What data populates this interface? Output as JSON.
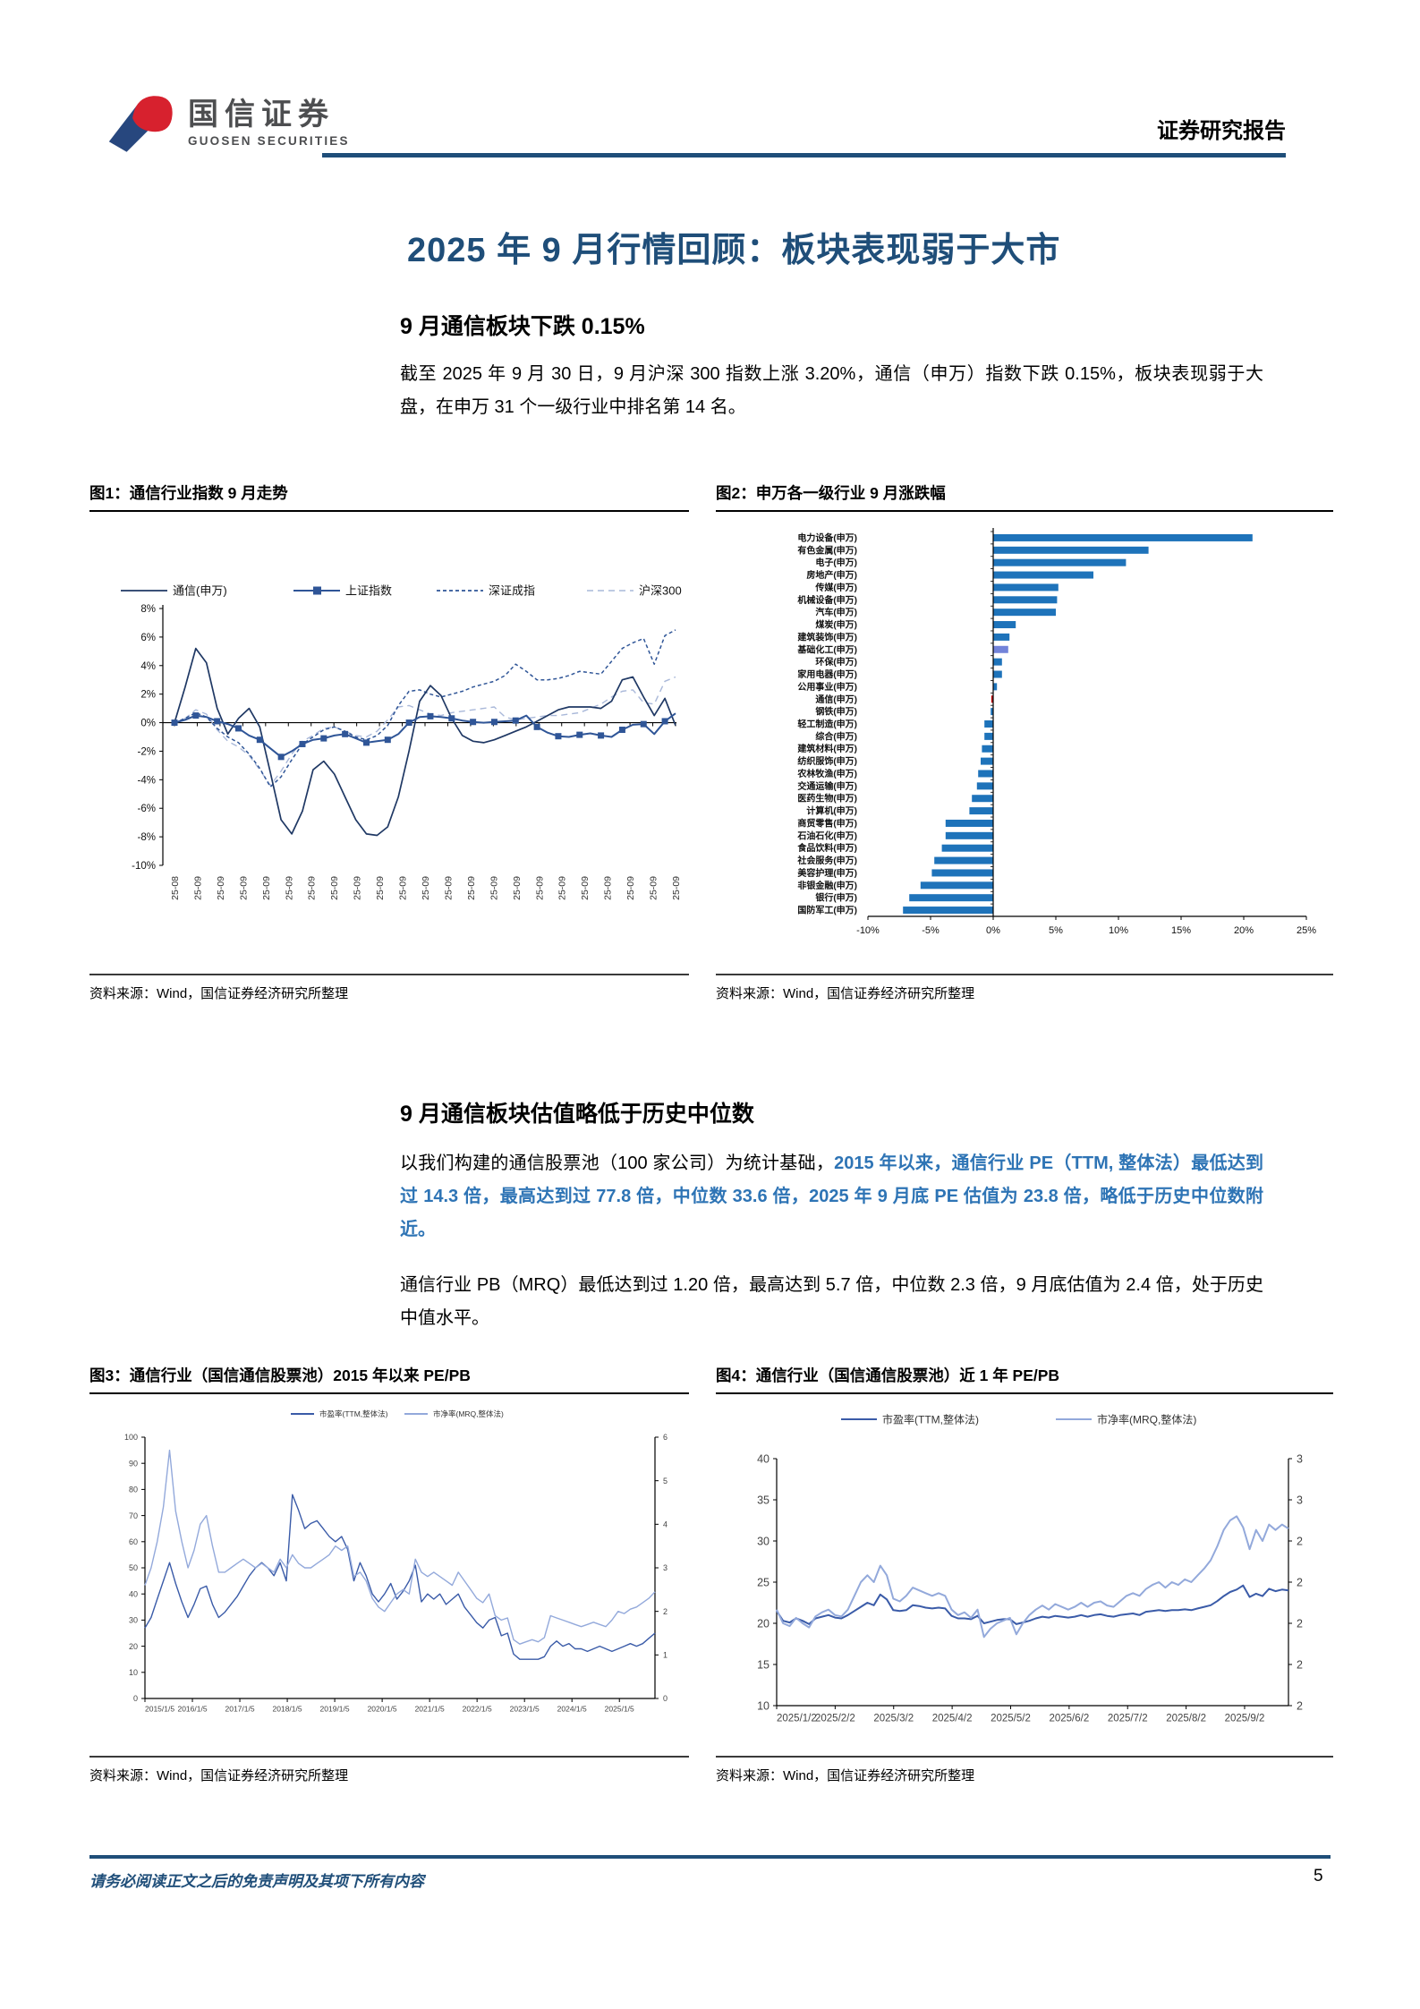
{
  "header": {
    "logo_cn": "国信证券",
    "logo_en": "GUOSEN SECURITIES",
    "right_label": "证券研究报告",
    "rule_color": "#1F4E79",
    "logo_blue": "#27477E",
    "logo_red": "#D7212E"
  },
  "title": "2025 年 9 月行情回顾：板块表现弱于大市",
  "section1": {
    "heading": "9 月通信板块下跌 0.15%",
    "paragraph": "截至 2025 年 9 月 30 日，9 月沪深 300 指数上涨 3.20%，通信（申万）指数下跌 0.15%，板块表现弱于大盘，在申万 31 个一级行业中排名第 14 名。"
  },
  "section2": {
    "heading": "9 月通信板块估值略低于历史中位数",
    "para1_black": "以我们构建的通信股票池（100 家公司）为统计基础，",
    "para1_blue": "2015 年以来，通信行业 PE（TTM, 整体法）最低达到过 14.3 倍，最高达到过 77.8 倍，中位数 33.6 倍，2025 年 9 月底 PE 估值为 23.8 倍，略低于历史中位数附近。",
    "para2": "通信行业 PB（MRQ）最低达到过 1.20 倍，最高达到 5.7 倍，中位数 2.3 倍，9 月底估值为 2.4 倍，处于历史中值水平。"
  },
  "footer": {
    "disclaimer": "请务必阅读正文之后的免责声明及其项下所有内容",
    "page_number": "5"
  },
  "chart_data": [
    {
      "id": "fig1",
      "type": "line",
      "title": "图1：通信行业指数 9 月走势",
      "source": "资料来源：Wind，国信证券经济研究所整理",
      "ylim": [
        -10,
        8
      ],
      "ytick_labels": [
        "8%",
        "6%",
        "4%",
        "2%",
        "0%",
        "-2%",
        "-4%",
        "-6%",
        "-8%",
        "-10%"
      ],
      "x_labels": [
        "25-08",
        "25-09",
        "25-09",
        "25-09",
        "25-09",
        "25-09",
        "25-09",
        "25-09",
        "25-09",
        "25-09",
        "25-09",
        "25-09",
        "25-09",
        "25-09",
        "25-09",
        "25-09",
        "25-09",
        "25-09",
        "25-09",
        "25-09",
        "25-09",
        "25-09",
        "25-09"
      ],
      "series": [
        {
          "name": "沪深300",
          "color": "#A9B8D9",
          "style": "dash2",
          "width": 1.4,
          "values": [
            0,
            0.3,
            0.9,
            0.6,
            -0.5,
            -1.3,
            -1.7,
            -2.3,
            -3.3,
            -4.4,
            -3.4,
            -2.2,
            -1.3,
            -0.9,
            -0.4,
            -0.3,
            -0.6,
            -0.9,
            -1.0,
            -0.6,
            0.2,
            1.1,
            1.2,
            0.9,
            0.6,
            0.5,
            0.7,
            0.8,
            0.9,
            1.0,
            1.1,
            0.4,
            0.2,
            0.3,
            0.4,
            0.5,
            0.5,
            0.6,
            0.7,
            1.0,
            1.3,
            1.8,
            2.2,
            2.3,
            1.4,
            1.3,
            2.9,
            3.2
          ]
        },
        {
          "name": "深证成指",
          "color": "#2F5597",
          "style": "dash",
          "width": 1.5,
          "values": [
            0,
            0.3,
            0.7,
            0.4,
            -0.4,
            -1.0,
            -1.4,
            -2.2,
            -3.2,
            -4.5,
            -3.8,
            -2.6,
            -1.5,
            -1.0,
            -0.5,
            -0.3,
            -0.6,
            -1.0,
            -1.2,
            -0.9,
            -0.2,
            1.2,
            2.2,
            2.3,
            2.0,
            1.8,
            2.0,
            2.2,
            2.5,
            2.7,
            2.9,
            3.3,
            4.1,
            3.6,
            3.0,
            3.0,
            3.1,
            3.3,
            3.6,
            3.5,
            3.4,
            4.3,
            5.2,
            5.6,
            5.9,
            4.1,
            6.1,
            6.5
          ]
        },
        {
          "name": "通信(申万)",
          "color": "#1F3864",
          "style": "solid",
          "width": 1.7,
          "values": [
            0,
            2.5,
            5.2,
            4.2,
            1.0,
            -0.8,
            0.3,
            1.0,
            -0.3,
            -3.5,
            -6.8,
            -7.8,
            -6.2,
            -3.3,
            -2.7,
            -3.6,
            -5.2,
            -6.8,
            -7.8,
            -7.9,
            -7.3,
            -5.2,
            -2.0,
            1.5,
            2.6,
            1.9,
            0.3,
            -0.9,
            -1.3,
            -1.4,
            -1.2,
            -0.9,
            -0.6,
            -0.3,
            0.1,
            0.5,
            0.9,
            1.1,
            1.1,
            1.1,
            1.0,
            1.5,
            3.0,
            3.2,
            1.8,
            0.5,
            1.7,
            -0.2
          ]
        },
        {
          "name": "上证指数",
          "color": "#2F5597",
          "style": "marker",
          "width": 2,
          "values": [
            0,
            0.2,
            0.5,
            0.4,
            0.1,
            -0.1,
            -0.4,
            -0.9,
            -1.2,
            -1.8,
            -2.4,
            -2.0,
            -1.5,
            -1.2,
            -1.1,
            -0.9,
            -0.8,
            -1.1,
            -1.4,
            -1.3,
            -1.2,
            -0.8,
            0.0,
            0.4,
            0.45,
            0.4,
            0.3,
            0.15,
            0.05,
            0.0,
            0.05,
            0.1,
            0.15,
            0.5,
            -0.3,
            -0.7,
            -0.95,
            -1.0,
            -0.85,
            -0.75,
            -0.9,
            -1.0,
            -0.5,
            -0.15,
            -0.1,
            -0.8,
            0.1,
            0.65
          ]
        }
      ],
      "legend_order": [
        "通信(申万)",
        "上证指数",
        "深证成指",
        "沪深300"
      ]
    },
    {
      "id": "fig2",
      "type": "bar",
      "title": "图2：申万各一级行业 9 月涨跌幅",
      "source": "资料来源：Wind，国信证券经济研究所整理",
      "xlim": [
        -10,
        25
      ],
      "xtick_labels": [
        "-10%",
        "-5%",
        "0%",
        "5%",
        "10%",
        "15%",
        "20%",
        "25%"
      ],
      "bar_color": "#1E73BA",
      "categories": [
        "电力设备(申万)",
        "有色金属(申万)",
        "电子(申万)",
        "房地产(申万)",
        "传媒(申万)",
        "机械设备(申万)",
        "汽车(申万)",
        "煤炭(申万)",
        "建筑装饰(申万)",
        "基础化工(申万)",
        "环保(申万)",
        "家用电器(申万)",
        "公用事业(申万)",
        "通信(申万)",
        "钢铁(申万)",
        "轻工制造(申万)",
        "综合(申万)",
        "建筑材料(申万)",
        "纺织服饰(申万)",
        "农林牧渔(申万)",
        "交通运输(申万)",
        "医药生物(申万)",
        "计算机(申万)",
        "商贸零售(申万)",
        "石油石化(申万)",
        "食品饮料(申万)",
        "社会服务(申万)",
        "美容护理(申万)",
        "非银金融(申万)",
        "银行(申万)",
        "国防军工(申万)"
      ],
      "values": [
        20.7,
        12.4,
        10.6,
        8.0,
        5.2,
        5.1,
        5.0,
        1.8,
        1.3,
        1.2,
        0.7,
        0.7,
        0.3,
        -0.15,
        -0.2,
        -0.7,
        -0.7,
        -0.9,
        -1.0,
        -1.2,
        -1.3,
        -1.7,
        -1.9,
        -3.8,
        -3.8,
        -4.1,
        -4.7,
        -4.9,
        -5.8,
        -6.7,
        -7.2
      ],
      "color_overrides": {
        "通信(申万)": "#C00000",
        "基础化工(申万)": "#7283D9"
      }
    },
    {
      "id": "fig3",
      "type": "line",
      "title": "图3：通信行业（国信通信股票池）2015 年以来 PE/PB",
      "source": "资料来源：Wind，国信证券经济研究所整理",
      "left_ylim": [
        0,
        100
      ],
      "left_ticks": [
        100,
        90,
        80,
        70,
        60,
        50,
        40,
        30,
        20,
        10,
        0
      ],
      "right_ylim": [
        0,
        6
      ],
      "right_ticks": [
        6,
        5,
        4,
        3,
        2,
        1,
        0
      ],
      "x_labels": [
        "2015/1/5",
        "2016/1/5",
        "2017/1/5",
        "2018/1/5",
        "2019/1/5",
        "2020/1/5",
        "2021/1/5",
        "2022/1/5",
        "2023/1/5",
        "2024/1/5",
        "2025/1/5"
      ],
      "series": [
        {
          "name": "市盈率(TTM,整体法)",
          "axis": "left",
          "color": "#3A5BA8",
          "values": [
            27,
            31,
            38,
            45,
            52,
            44,
            37,
            31,
            36,
            42,
            43,
            36,
            31,
            33,
            36,
            39,
            43,
            47,
            50,
            52,
            50,
            47,
            52,
            45,
            78,
            72,
            65,
            67,
            68,
            65,
            62,
            60,
            62,
            57,
            45,
            52,
            47,
            40,
            37,
            40,
            44,
            38,
            41,
            45,
            51,
            37,
            40,
            38,
            40,
            36,
            38,
            40,
            35,
            32,
            29,
            27,
            30,
            31,
            24,
            25,
            17,
            15,
            15,
            15,
            15,
            16,
            20,
            22,
            20,
            21,
            19,
            19,
            18,
            19,
            20,
            19,
            18,
            19,
            20,
            21,
            20,
            21,
            23,
            25
          ]
        },
        {
          "name": "市净率(MRQ,整体法)",
          "axis": "right",
          "color": "#93A9DB",
          "values": [
            2.6,
            3.0,
            3.6,
            4.4,
            5.7,
            4.3,
            3.6,
            3.0,
            3.4,
            4.0,
            4.2,
            3.5,
            2.9,
            2.9,
            3.0,
            3.1,
            3.2,
            3.1,
            3.0,
            3.1,
            3.0,
            2.9,
            3.2,
            3.0,
            3.3,
            3.1,
            3.0,
            3.0,
            3.1,
            3.2,
            3.3,
            3.5,
            3.4,
            3.5,
            2.8,
            2.9,
            2.7,
            2.3,
            2.1,
            2.0,
            2.2,
            2.4,
            2.5,
            2.4,
            3.2,
            2.9,
            2.8,
            2.9,
            2.8,
            2.7,
            2.6,
            2.9,
            2.7,
            2.5,
            2.3,
            2.2,
            2.4,
            1.9,
            1.8,
            1.85,
            1.35,
            1.25,
            1.3,
            1.35,
            1.3,
            1.4,
            1.9,
            1.85,
            1.8,
            1.75,
            1.7,
            1.65,
            1.7,
            1.75,
            1.7,
            1.65,
            1.8,
            2.0,
            1.95,
            2.05,
            2.1,
            2.2,
            2.3,
            2.45
          ]
        }
      ]
    },
    {
      "id": "fig4",
      "type": "line",
      "title": "图4：通信行业（国信通信股票池）近 1 年 PE/PB",
      "source": "资料来源：Wind，国信证券经济研究所整理",
      "left_ylim": [
        10,
        40
      ],
      "left_ticks": [
        40,
        35,
        30,
        25,
        20,
        15,
        10
      ],
      "right_tick_labels": [
        "3",
        "3",
        "2",
        "2",
        "2",
        "2",
        "2"
      ],
      "right_ylim": [
        1.6,
        3.4
      ],
      "x_labels": [
        "2025/1/2",
        "2025/2/2",
        "2025/3/2",
        "2025/4/2",
        "2025/5/2",
        "2025/6/2",
        "2025/7/2",
        "2025/8/2",
        "2025/9/2"
      ],
      "series": [
        {
          "name": "市盈率(TTM,整体法)",
          "axis": "left",
          "color": "#3A5BA8",
          "values": [
            21.5,
            20.3,
            20.1,
            20.6,
            20.3,
            19.9,
            20.6,
            20.8,
            21.0,
            20.7,
            20.6,
            21.0,
            21.5,
            22.0,
            22.5,
            22.2,
            23.5,
            22.9,
            21.6,
            21.5,
            21.6,
            22.2,
            22.1,
            21.9,
            21.8,
            21.9,
            21.8,
            20.9,
            20.6,
            20.6,
            20.5,
            20.9,
            20.0,
            20.2,
            20.4,
            20.5,
            20.5,
            19.9,
            20.1,
            20.3,
            20.6,
            20.8,
            20.7,
            20.9,
            20.8,
            20.7,
            20.8,
            21.0,
            20.8,
            21.0,
            21.1,
            20.9,
            20.8,
            21.0,
            21.1,
            21.2,
            21.0,
            21.4,
            21.5,
            21.6,
            21.5,
            21.6,
            21.6,
            21.7,
            21.6,
            21.8,
            22.0,
            22.2,
            22.7,
            23.3,
            23.8,
            24.1,
            24.6,
            23.2,
            23.6,
            23.3,
            24.2,
            23.9,
            24.1,
            24.0
          ]
        },
        {
          "name": "市净率(MRQ,整体法)",
          "axis": "right",
          "color": "#93A9DB",
          "values": [
            2.3,
            2.2,
            2.18,
            2.24,
            2.2,
            2.17,
            2.25,
            2.28,
            2.3,
            2.26,
            2.25,
            2.3,
            2.4,
            2.5,
            2.55,
            2.5,
            2.62,
            2.55,
            2.38,
            2.36,
            2.4,
            2.46,
            2.44,
            2.42,
            2.4,
            2.42,
            2.4,
            2.3,
            2.26,
            2.28,
            2.24,
            2.3,
            2.1,
            2.16,
            2.2,
            2.22,
            2.24,
            2.12,
            2.2,
            2.26,
            2.3,
            2.33,
            2.3,
            2.34,
            2.32,
            2.3,
            2.32,
            2.35,
            2.32,
            2.35,
            2.36,
            2.33,
            2.32,
            2.36,
            2.4,
            2.42,
            2.4,
            2.45,
            2.48,
            2.5,
            2.46,
            2.5,
            2.48,
            2.52,
            2.5,
            2.55,
            2.6,
            2.66,
            2.76,
            2.88,
            2.95,
            2.98,
            2.9,
            2.74,
            2.88,
            2.8,
            2.92,
            2.88,
            2.92,
            2.89
          ]
        }
      ]
    }
  ]
}
